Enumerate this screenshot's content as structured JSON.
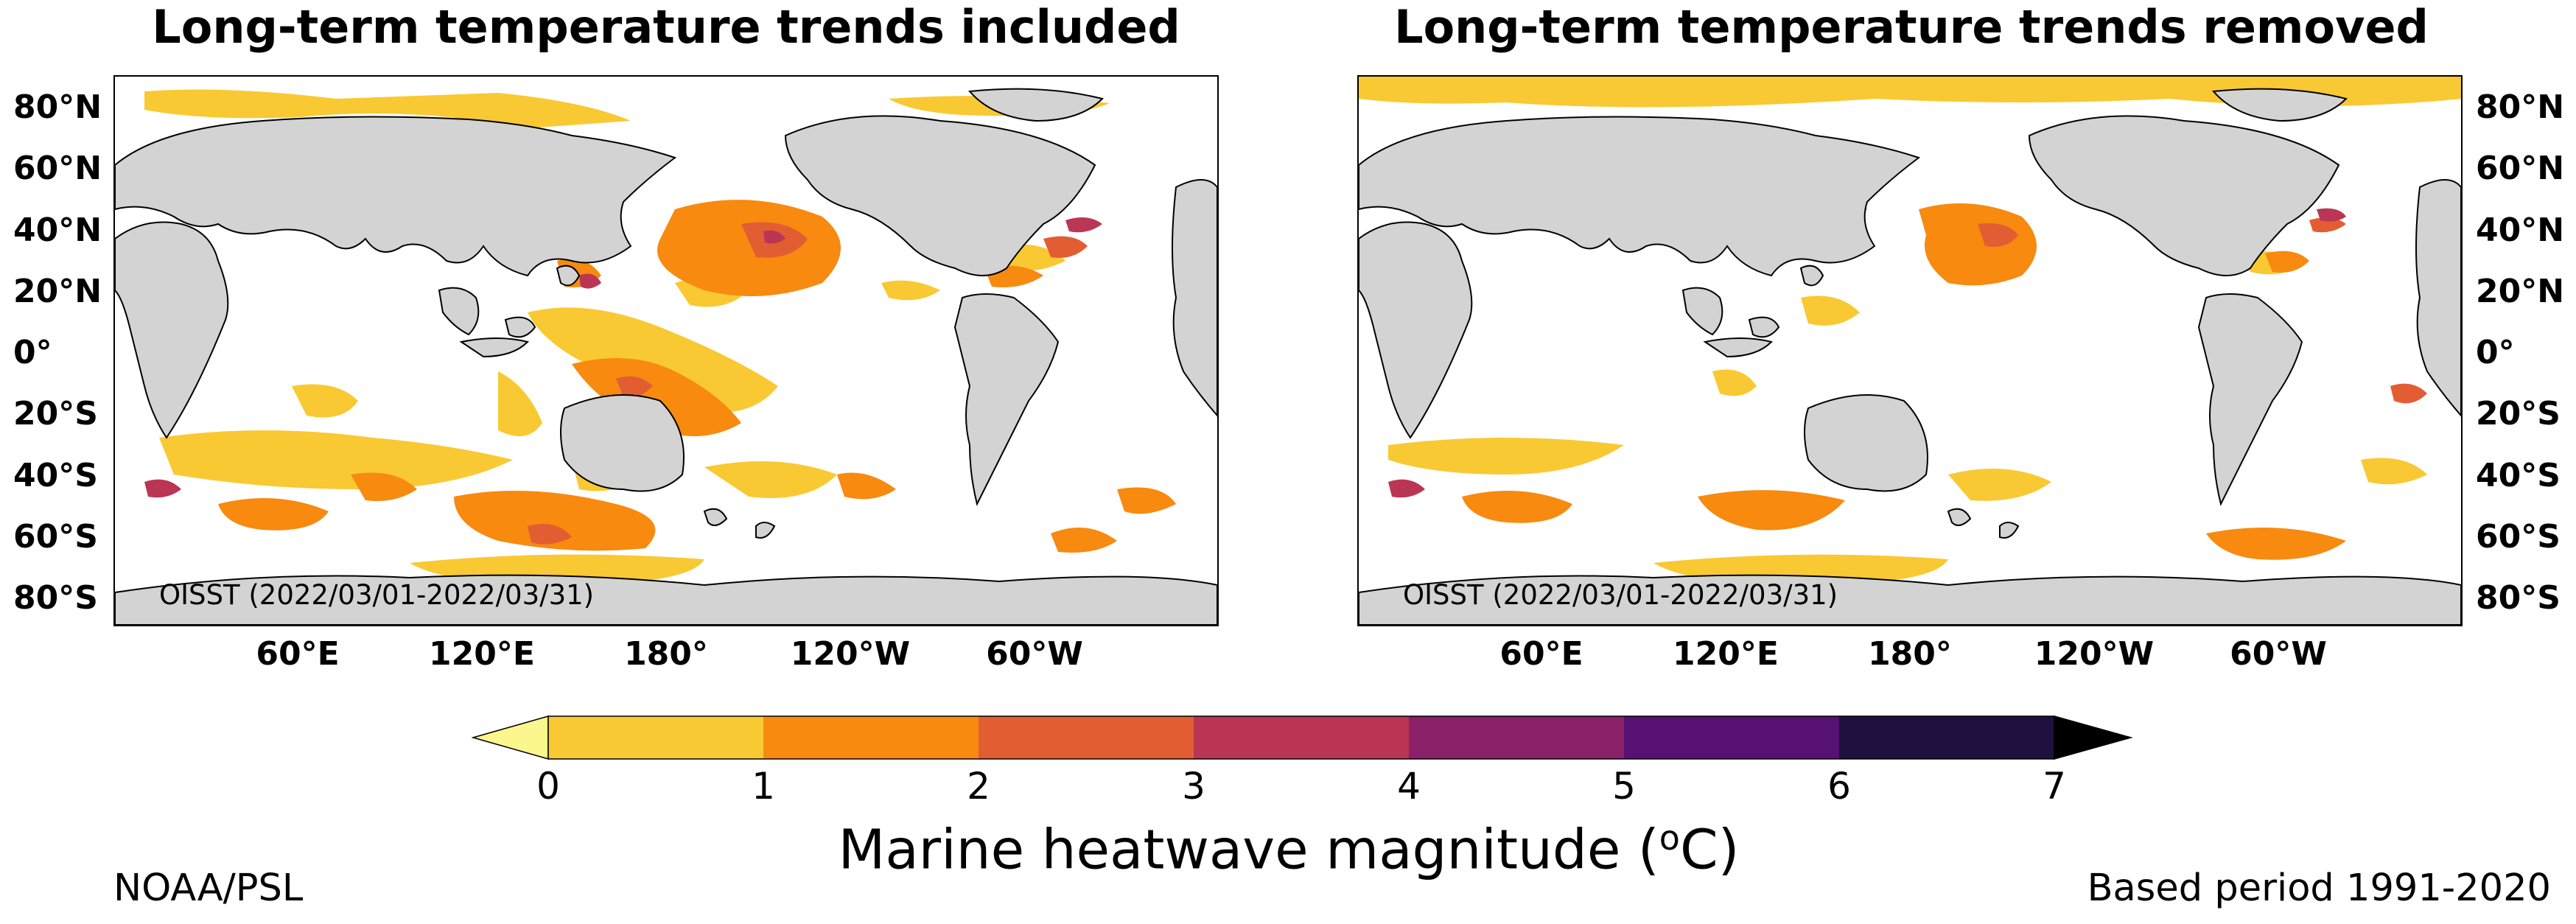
{
  "panels": {
    "left": {
      "title": "Long-term temperature trends included",
      "source": "OISST (2022/03/01-2022/03/31)"
    },
    "right": {
      "title": "Long-term temperature trends removed",
      "source": "OISST (2022/03/01-2022/03/31)"
    }
  },
  "lat_ticks": [
    "80°N",
    "60°N",
    "40°N",
    "20°N",
    "0°",
    "20°S",
    "40°S",
    "60°S",
    "80°S"
  ],
  "lon_ticks": [
    "60°E",
    "120°E",
    "180°",
    "120°W",
    "60°W"
  ],
  "colorbar": {
    "ticks": [
      "0",
      "1",
      "2",
      "3",
      "4",
      "5",
      "6",
      "7"
    ],
    "colors": [
      "#f9c933",
      "#f78a0f",
      "#e35d33",
      "#ba3654",
      "#8b2269",
      "#561173",
      "#20103f"
    ],
    "under_color": "#fcf68f",
    "over_color": "#000000",
    "label_text": "Marine heatwave magnitude (",
    "label_sup": "o",
    "label_unit": "C)"
  },
  "footer": {
    "left": "NOAA/PSL",
    "right": "Based period 1991-2020"
  }
}
